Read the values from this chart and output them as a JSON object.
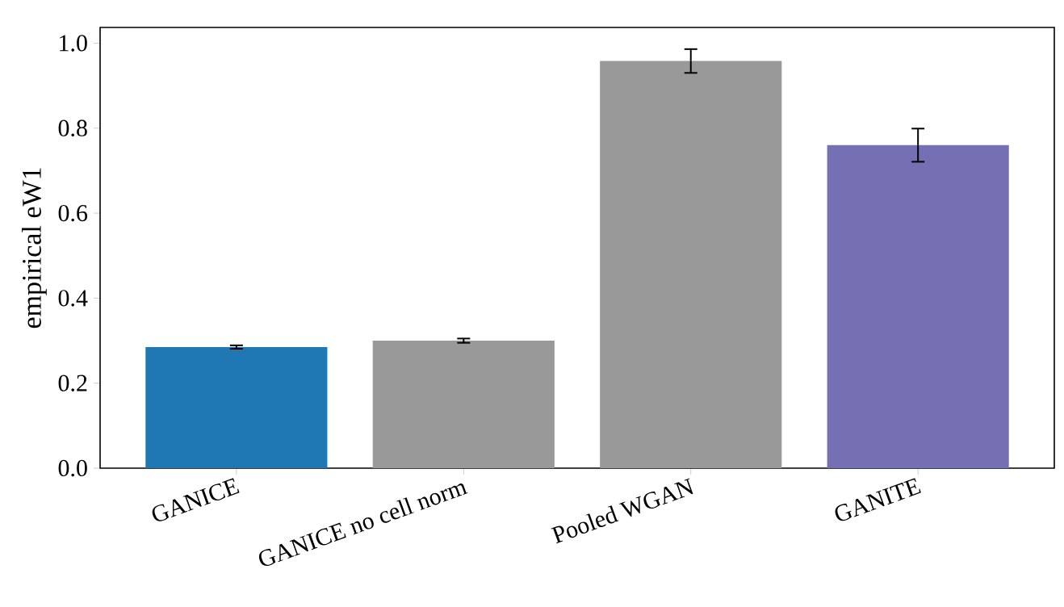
{
  "chart_data": {
    "type": "bar",
    "ylabel": "empirical eW1",
    "categories": [
      "GANICE",
      "GANICE no cell norm",
      "Pooled WGAN",
      "GANITE"
    ],
    "values": [
      0.285,
      0.3,
      0.958,
      0.76
    ],
    "errors": [
      0.004,
      0.005,
      0.028,
      0.039
    ],
    "colors": [
      "#1f77b4",
      "#999999",
      "#999999",
      "#7570b3"
    ],
    "ylim": [
      0,
      1.037
    ],
    "yticks": [
      {
        "value": 0,
        "label": "0.0"
      },
      {
        "value": 0.2,
        "label": "0.2"
      },
      {
        "value": 0.4,
        "label": "0.4"
      },
      {
        "value": 0.6,
        "label": "0.6"
      },
      {
        "value": 0.8,
        "label": "0.8"
      },
      {
        "value": 1,
        "label": "1.0"
      }
    ],
    "grid": false
  }
}
